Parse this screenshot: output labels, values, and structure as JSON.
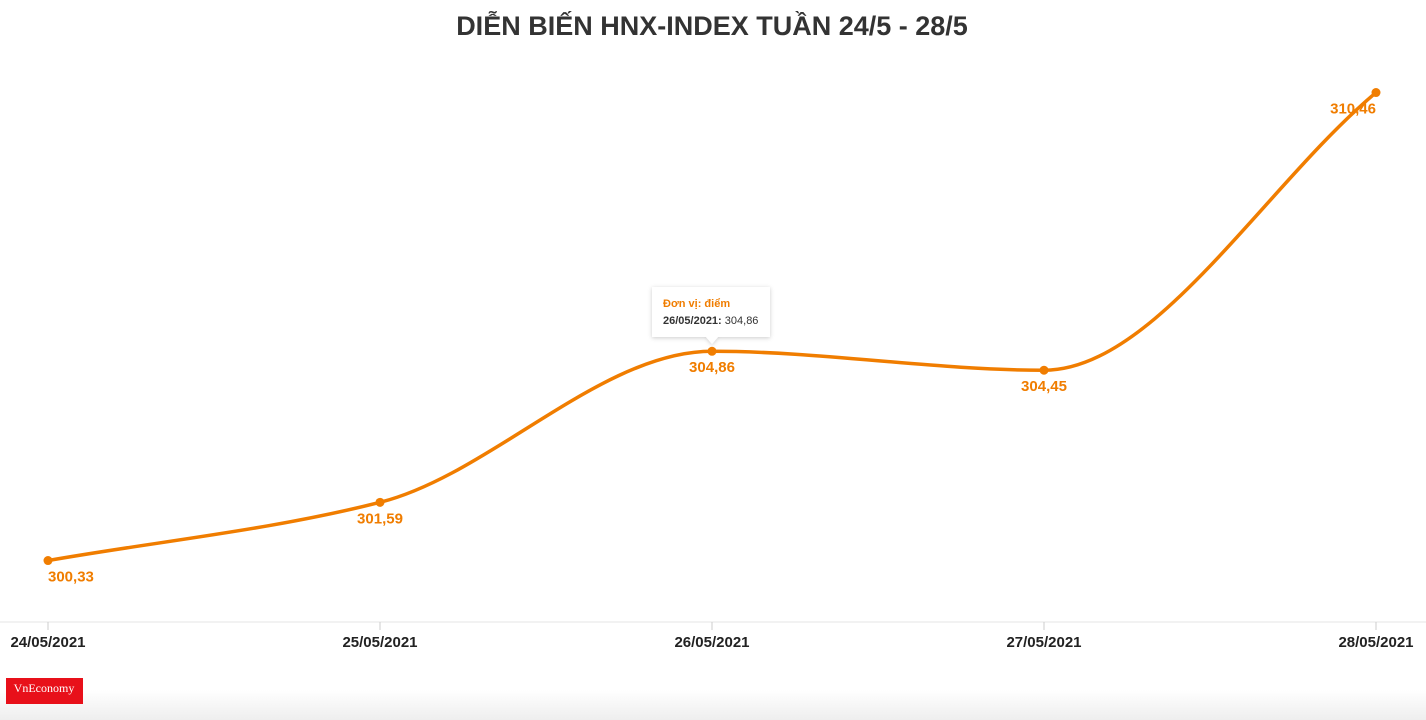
{
  "chart_data": {
    "type": "line",
    "title": "DIỄN BIẾN HNX-INDEX TUẦN 24/5 - 28/5",
    "categories": [
      "24/05/2021",
      "25/05/2021",
      "26/05/2021",
      "27/05/2021",
      "28/05/2021"
    ],
    "values": [
      300.33,
      301.59,
      304.86,
      304.45,
      310.46
    ],
    "value_labels": [
      "300,33",
      "301,59",
      "304,86",
      "304,45",
      "310,46"
    ],
    "color": "#f07d00",
    "ylim": [
      299,
      311
    ],
    "tooltip": {
      "title": "Đơn vị: điểm",
      "label": "26/05/2021:",
      "value": "304,86"
    },
    "logo": "VnEconomy"
  }
}
